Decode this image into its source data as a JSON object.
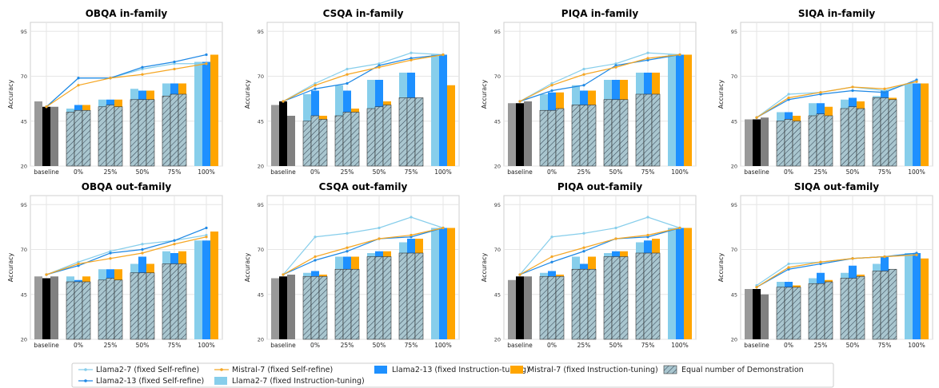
{
  "colors": {
    "llama7_sr": "#87ceeb",
    "llama13_sr": "#1e88e5",
    "mistral_sr": "#f5a623",
    "llama7_it": "#87ceeb",
    "llama13_it": "#1e90ff",
    "mistral_it": "#ffa500",
    "baseline_left": "#999999",
    "baseline_mid": "#000000",
    "baseline_right": "#808080",
    "grid": "#e6e6e6",
    "hatch_fill": "#a9c6cf"
  },
  "legend": [
    {
      "key": "llama7_sr",
      "label": "Llama2-7 (fixed Self-refine)",
      "kind": "line"
    },
    {
      "key": "llama13_sr",
      "label": "Llama2-13 (fixed Self-refine)",
      "kind": "line"
    },
    {
      "key": "mistral_sr",
      "label": "Mistral-7 (fixed Self-refine)",
      "kind": "line"
    },
    {
      "key": "llama7_it",
      "label": "Llama2-7 (fixed Instruction-tuning)",
      "kind": "bar"
    },
    {
      "key": "llama13_it",
      "label": "Llama2-13 (fixed Instruction-tuning)",
      "kind": "bar"
    },
    {
      "key": "mistral_it",
      "label": "Mistral-7 (fixed Instruction-tuning)",
      "kind": "bar"
    },
    {
      "key": "hatch",
      "label": "Equal number of Demonstration",
      "kind": "hatch"
    }
  ],
  "chart_data": [
    {
      "type": "bar",
      "title": "OBQA in-family",
      "ylabel": "Accuracy",
      "ylim": [
        20,
        100
      ],
      "yticks": [
        20,
        45,
        70,
        95
      ],
      "categories": [
        "baseline",
        "0%",
        "25%",
        "50%",
        "75%",
        "100%"
      ],
      "baseline": [
        56,
        53,
        53
      ],
      "bars": {
        "llama7_it": [
          52,
          57,
          63,
          66,
          78
        ],
        "llama13_it": [
          54,
          57,
          62,
          66,
          78
        ],
        "mistral_it": [
          54,
          57,
          62,
          66,
          82
        ]
      },
      "hatch": {
        "llama7_it": [
          50,
          53,
          57,
          59
        ],
        "llama13_it": [
          51,
          54,
          57,
          60
        ],
        "mistral_it": [
          51,
          53,
          57,
          60
        ]
      },
      "lines": {
        "llama7_sr": [
          53,
          69,
          69,
          74,
          77,
          77
        ],
        "llama13_sr": [
          53,
          69,
          69,
          75,
          78,
          82
        ],
        "mistral_sr": [
          53,
          65,
          69,
          71,
          74,
          77
        ]
      }
    },
    {
      "type": "bar",
      "title": "CSQA in-family",
      "ylabel": "Accuracy",
      "ylim": [
        20,
        100
      ],
      "yticks": [
        20,
        45,
        70,
        95
      ],
      "categories": [
        "baseline",
        "0%",
        "25%",
        "50%",
        "75%",
        "100%"
      ],
      "baseline": [
        54,
        56,
        48
      ],
      "bars": {
        "llama7_it": [
          60,
          65,
          68,
          72,
          82
        ],
        "llama13_it": [
          62,
          62,
          68,
          72,
          82
        ],
        "mistral_it": [
          48,
          52,
          56,
          58,
          65
        ]
      },
      "hatch": {
        "llama7_it": [
          45,
          48,
          52,
          58
        ],
        "llama13_it": [
          48,
          50,
          53,
          58
        ],
        "mistral_it": [
          46,
          50,
          54,
          58
        ]
      },
      "lines": {
        "llama7_sr": [
          56,
          66,
          74,
          77,
          83,
          82
        ],
        "llama13_sr": [
          56,
          63,
          66,
          76,
          80,
          82
        ],
        "mistral_sr": [
          56,
          65,
          71,
          75,
          79,
          82
        ]
      }
    },
    {
      "type": "bar",
      "title": "PIQA in-family",
      "ylabel": "Accuracy",
      "ylim": [
        20,
        100
      ],
      "yticks": [
        20,
        45,
        70,
        95
      ],
      "categories": [
        "baseline",
        "0%",
        "25%",
        "50%",
        "75%",
        "100%"
      ],
      "baseline": [
        55,
        55,
        56
      ],
      "bars": {
        "llama7_it": [
          60,
          65,
          68,
          72,
          82
        ],
        "llama13_it": [
          61,
          62,
          68,
          72,
          82
        ],
        "mistral_it": [
          61,
          62,
          68,
          72,
          82
        ]
      },
      "hatch": {
        "llama7_it": [
          51,
          54,
          57,
          60
        ],
        "llama13_it": [
          51,
          54,
          57,
          60
        ],
        "mistral_it": [
          52,
          54,
          57,
          60
        ]
      },
      "lines": {
        "llama7_sr": [
          56,
          66,
          74,
          77,
          83,
          82
        ],
        "llama13_sr": [
          56,
          62,
          65,
          76,
          79,
          82
        ],
        "mistral_sr": [
          56,
          65,
          71,
          75,
          80,
          82
        ]
      }
    },
    {
      "type": "bar",
      "title": "SIQA in-family",
      "ylabel": "Accuracy",
      "ylim": [
        20,
        100
      ],
      "yticks": [
        20,
        45,
        70,
        95
      ],
      "categories": [
        "baseline",
        "0%",
        "25%",
        "50%",
        "75%",
        "100%"
      ],
      "baseline": [
        46,
        46,
        47
      ],
      "bars": {
        "llama7_it": [
          50,
          55,
          57,
          59,
          66
        ],
        "llama13_it": [
          50,
          55,
          58,
          62,
          66
        ],
        "mistral_it": [
          48,
          53,
          56,
          58,
          66
        ]
      },
      "hatch": {
        "llama7_it": [
          45,
          48,
          52,
          58
        ],
        "llama13_it": [
          46,
          49,
          53,
          58
        ],
        "mistral_it": [
          45,
          48,
          52,
          57
        ]
      },
      "lines": {
        "llama7_sr": [
          47,
          60,
          61,
          64,
          62,
          67
        ],
        "llama13_sr": [
          47,
          57,
          60,
          62,
          61,
          68
        ],
        "mistral_sr": [
          47,
          58,
          61,
          64,
          63,
          67
        ]
      }
    },
    {
      "type": "bar",
      "title": "OBQA out-family",
      "ylabel": "Accuracy",
      "ylim": [
        20,
        100
      ],
      "yticks": [
        20,
        45,
        70,
        95
      ],
      "categories": [
        "baseline",
        "0%",
        "25%",
        "50%",
        "75%",
        "100%"
      ],
      "baseline": [
        55,
        54,
        55
      ],
      "bars": {
        "llama7_it": [
          55,
          59,
          62,
          69,
          75
        ],
        "llama13_it": [
          53,
          59,
          66,
          68,
          75
        ],
        "mistral_it": [
          55,
          59,
          62,
          69,
          80
        ]
      },
      "hatch": {
        "llama7_it": [
          52,
          53,
          57,
          62
        ],
        "llama13_it": [
          52,
          54,
          57,
          62
        ],
        "mistral_it": [
          52,
          53,
          57,
          62
        ]
      },
      "lines": {
        "llama7_sr": [
          56,
          63,
          69,
          73,
          75,
          78
        ],
        "llama13_sr": [
          56,
          61,
          68,
          70,
          75,
          82
        ],
        "mistral_sr": [
          56,
          62,
          65,
          68,
          73,
          77
        ]
      }
    },
    {
      "type": "bar",
      "title": "CSQA out-family",
      "ylabel": "Accuracy",
      "ylim": [
        20,
        100
      ],
      "yticks": [
        20,
        45,
        70,
        95
      ],
      "categories": [
        "baseline",
        "0%",
        "25%",
        "50%",
        "75%",
        "100%"
      ],
      "baseline": [
        54,
        55,
        56
      ],
      "bars": {
        "llama7_it": [
          57,
          66,
          68,
          74,
          82
        ],
        "llama13_it": [
          58,
          66,
          69,
          76,
          82
        ],
        "mistral_it": [
          56,
          66,
          69,
          76,
          82
        ]
      },
      "hatch": {
        "llama7_it": [
          55,
          59,
          66,
          68
        ],
        "llama13_it": [
          55,
          59,
          66,
          68
        ],
        "mistral_it": [
          55,
          59,
          66,
          68
        ]
      },
      "lines": {
        "llama7_sr": [
          56,
          77,
          79,
          82,
          88,
          82
        ],
        "llama13_sr": [
          56,
          64,
          69,
          76,
          77,
          82
        ],
        "mistral_sr": [
          56,
          66,
          71,
          76,
          78,
          82
        ]
      }
    },
    {
      "type": "bar",
      "title": "PIQA out-family",
      "ylabel": "Accuracy",
      "ylim": [
        20,
        100
      ],
      "yticks": [
        20,
        45,
        70,
        95
      ],
      "categories": [
        "baseline",
        "0%",
        "25%",
        "50%",
        "75%",
        "100%"
      ],
      "baseline": [
        53,
        55,
        55
      ],
      "bars": {
        "llama7_it": [
          57,
          66,
          68,
          74,
          82
        ],
        "llama13_it": [
          58,
          62,
          69,
          75,
          82
        ],
        "mistral_it": [
          56,
          66,
          69,
          76,
          82
        ]
      },
      "hatch": {
        "llama7_it": [
          55,
          59,
          66,
          68
        ],
        "llama13_it": [
          55,
          59,
          66,
          68
        ],
        "mistral_it": [
          55,
          59,
          66,
          68
        ]
      },
      "lines": {
        "llama7_sr": [
          56,
          77,
          79,
          82,
          88,
          82
        ],
        "llama13_sr": [
          56,
          63,
          69,
          76,
          77,
          82
        ],
        "mistral_sr": [
          56,
          66,
          71,
          76,
          78,
          82
        ]
      }
    },
    {
      "type": "bar",
      "title": "SIQA out-family",
      "ylabel": "Accuracy",
      "ylim": [
        20,
        100
      ],
      "yticks": [
        20,
        45,
        70,
        95
      ],
      "categories": [
        "baseline",
        "0%",
        "25%",
        "50%",
        "75%",
        "100%"
      ],
      "baseline": [
        48,
        48,
        45
      ],
      "bars": {
        "llama7_it": [
          52,
          54,
          57,
          62,
          68
        ],
        "llama13_it": [
          52,
          57,
          61,
          66,
          68
        ],
        "mistral_it": [
          50,
          53,
          56,
          59,
          65
        ]
      },
      "hatch": {
        "llama7_it": [
          49,
          51,
          54,
          58
        ],
        "llama13_it": [
          49,
          51,
          54,
          58
        ],
        "mistral_it": [
          49,
          52,
          55,
          59
        ]
      },
      "lines": {
        "llama7_sr": [
          50,
          62,
          63,
          65,
          66,
          67
        ],
        "llama13_sr": [
          49,
          59,
          62,
          65,
          66,
          68
        ],
        "mistral_sr": [
          49,
          60,
          63,
          65,
          66,
          67
        ]
      }
    }
  ]
}
